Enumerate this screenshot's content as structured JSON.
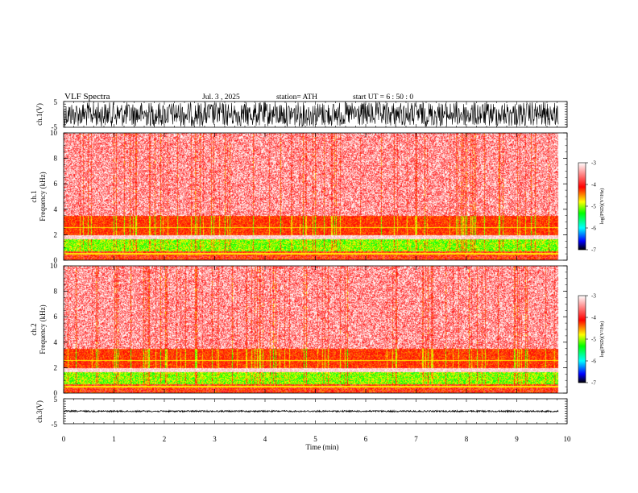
{
  "header": {
    "title": "VLF Spectra",
    "date": "Jul.  3  , 2025",
    "station": "station= ATH",
    "start": "start  UT  =   6  : 50 : 0"
  },
  "colors": {
    "waveform": "#000000",
    "spectrogram_background": "#ffffff"
  },
  "chart_data": [
    {
      "type": "line",
      "name": "ch1-waveform",
      "ylabel": "ch.1(V)",
      "ylim": [
        -5,
        5
      ],
      "yticks": [
        "5",
        "-5"
      ],
      "xlim": [
        0,
        10
      ],
      "amplitude_fraction": 0.95
    },
    {
      "type": "heatmap",
      "name": "ch1-spectrogram",
      "ylabel_channel": "ch.1",
      "ylabel": "Frequency  (kHz)",
      "ylim": [
        0,
        10
      ],
      "yticks": [
        "0",
        "2",
        "4",
        "6",
        "8",
        "10"
      ],
      "xlim": [
        0,
        10
      ],
      "data_end_min": 9.83,
      "colorbar": {
        "label": "log(PSD)(V²/Hz)",
        "range": [
          -7,
          -3
        ],
        "ticks": [
          "-3",
          "-4",
          "-5",
          "-6",
          "-7"
        ],
        "stops": [
          "#000000",
          "#0000ff",
          "#00ffff",
          "#00ff00",
          "#ffff00",
          "#ff0000",
          "#ffffff"
        ]
      }
    },
    {
      "type": "heatmap",
      "name": "ch2-spectrogram",
      "ylabel_channel": "ch.2",
      "ylabel": "Frequency  (kHz)",
      "ylim": [
        0,
        10
      ],
      "yticks": [
        "0",
        "2",
        "4",
        "6",
        "8",
        "10"
      ],
      "xlim": [
        0,
        10
      ],
      "data_end_min": 9.83,
      "colorbar": {
        "label": "log(PSD)(V²/Hz)",
        "range": [
          -7,
          -3
        ],
        "ticks": [
          "-3",
          "-4",
          "-5",
          "-6",
          "-7"
        ],
        "stops": [
          "#000000",
          "#0000ff",
          "#00ffff",
          "#00ff00",
          "#ffff00",
          "#ff0000",
          "#ffffff"
        ]
      }
    },
    {
      "type": "line",
      "name": "ch3-waveform",
      "ylabel": "ch.3(V)",
      "ylim": [
        -5,
        5
      ],
      "yticks": [
        "5",
        "-5"
      ],
      "xlim": [
        0,
        10
      ],
      "amplitude_fraction": 0.06
    }
  ],
  "xaxis": {
    "label": "Time  (min)",
    "ticks": [
      "0",
      "1",
      "2",
      "3",
      "4",
      "5",
      "6",
      "7",
      "8",
      "9",
      "10"
    ]
  }
}
